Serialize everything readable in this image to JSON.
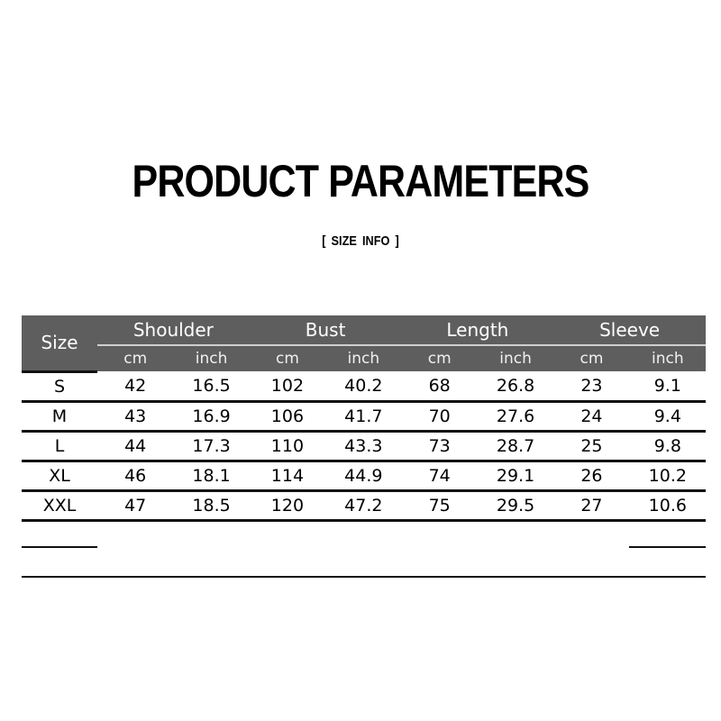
{
  "title": "PRODUCT PARAMETERS",
  "subtitle": "[ SIZE  INFO ]",
  "table": {
    "size_header": "Size",
    "groups": [
      "Shoulder",
      "Bust",
      "Length",
      "Sleeve"
    ],
    "units": [
      "cm",
      "inch",
      "cm",
      "inch",
      "cm",
      "inch",
      "cm",
      "inch"
    ],
    "rows": [
      [
        "S",
        "42",
        "16.5",
        "102",
        "40.2",
        "68",
        "26.8",
        "23",
        "9.1"
      ],
      [
        "M",
        "43",
        "16.9",
        "106",
        "41.7",
        "70",
        "27.6",
        "24",
        "9.4"
      ],
      [
        "L",
        "44",
        "17.3",
        "110",
        "43.3",
        "73",
        "28.7",
        "25",
        "9.8"
      ],
      [
        "XL",
        "46",
        "18.1",
        "114",
        "44.9",
        "74",
        "29.1",
        "26",
        "10.2"
      ],
      [
        "XXL",
        "47",
        "18.5",
        "120",
        "47.2",
        "75",
        "29.5",
        "27",
        "10.6"
      ]
    ],
    "header_color": "#5e5e5e"
  }
}
